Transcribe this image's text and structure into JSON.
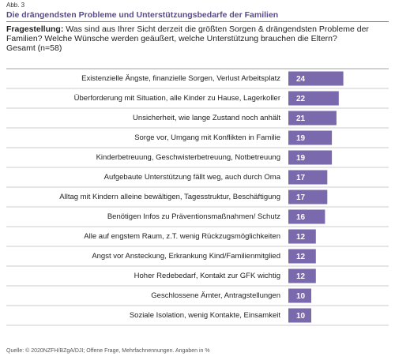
{
  "figure_label": "Abb. 3",
  "chart_data": {
    "type": "bar",
    "orientation": "horizontal",
    "title": "Die drängendsten Probleme und Unterstützungsbedarfe der Familien",
    "question_label": "Fragestellung:",
    "question_text": "Was sind aus Ihrer Sicht derzeit die größten Sorgen & drängendsten Probleme der Familien? Welche Wünsche werden geäußert, welche Unterstützung brauchen die Eltern?",
    "subtitle": "Gesamt (n=58)",
    "categories": [
      "Existenzielle Ängste, finanzielle Sorgen, Verlust Arbeitsplatz",
      "Überforderung mit Situation, alle Kinder zu Hause, Lagerkoller",
      "Unsicherheit, wie lange Zustand noch anhält",
      "Sorge vor, Umgang mit Konflikten in Familie",
      "Kinderbetreuung, Geschwisterbetreuung, Notbetreuung",
      "Aufgebaute Unterstützung fällt weg, auch durch Oma",
      "Alltag mit Kindern alleine bewältigen, Tagesstruktur, Beschäftigung",
      "Benötigen Infos zu Präventionsmaßnahmen/ Schutz",
      "Alle auf engstem Raum, z.T. wenig Rückzugsmöglichkeiten",
      "Angst vor Ansteckung, Erkrankung Kind/Familienmitglied",
      "Hoher Redebedarf, Kontakt zur GFK wichtig",
      "Geschlossene Ämter, Antragstellungen",
      "Soziale Isolation, wenig Kontakte, Einsamkeit"
    ],
    "values": [
      24,
      22,
      21,
      19,
      19,
      17,
      17,
      16,
      12,
      12,
      12,
      10,
      10
    ],
    "color": "#7a69ad",
    "source": "Quelle: © 2020NZFH/BZgA/DJI; Offene Frage, Mehrfachnennungen. Angaben in %"
  }
}
